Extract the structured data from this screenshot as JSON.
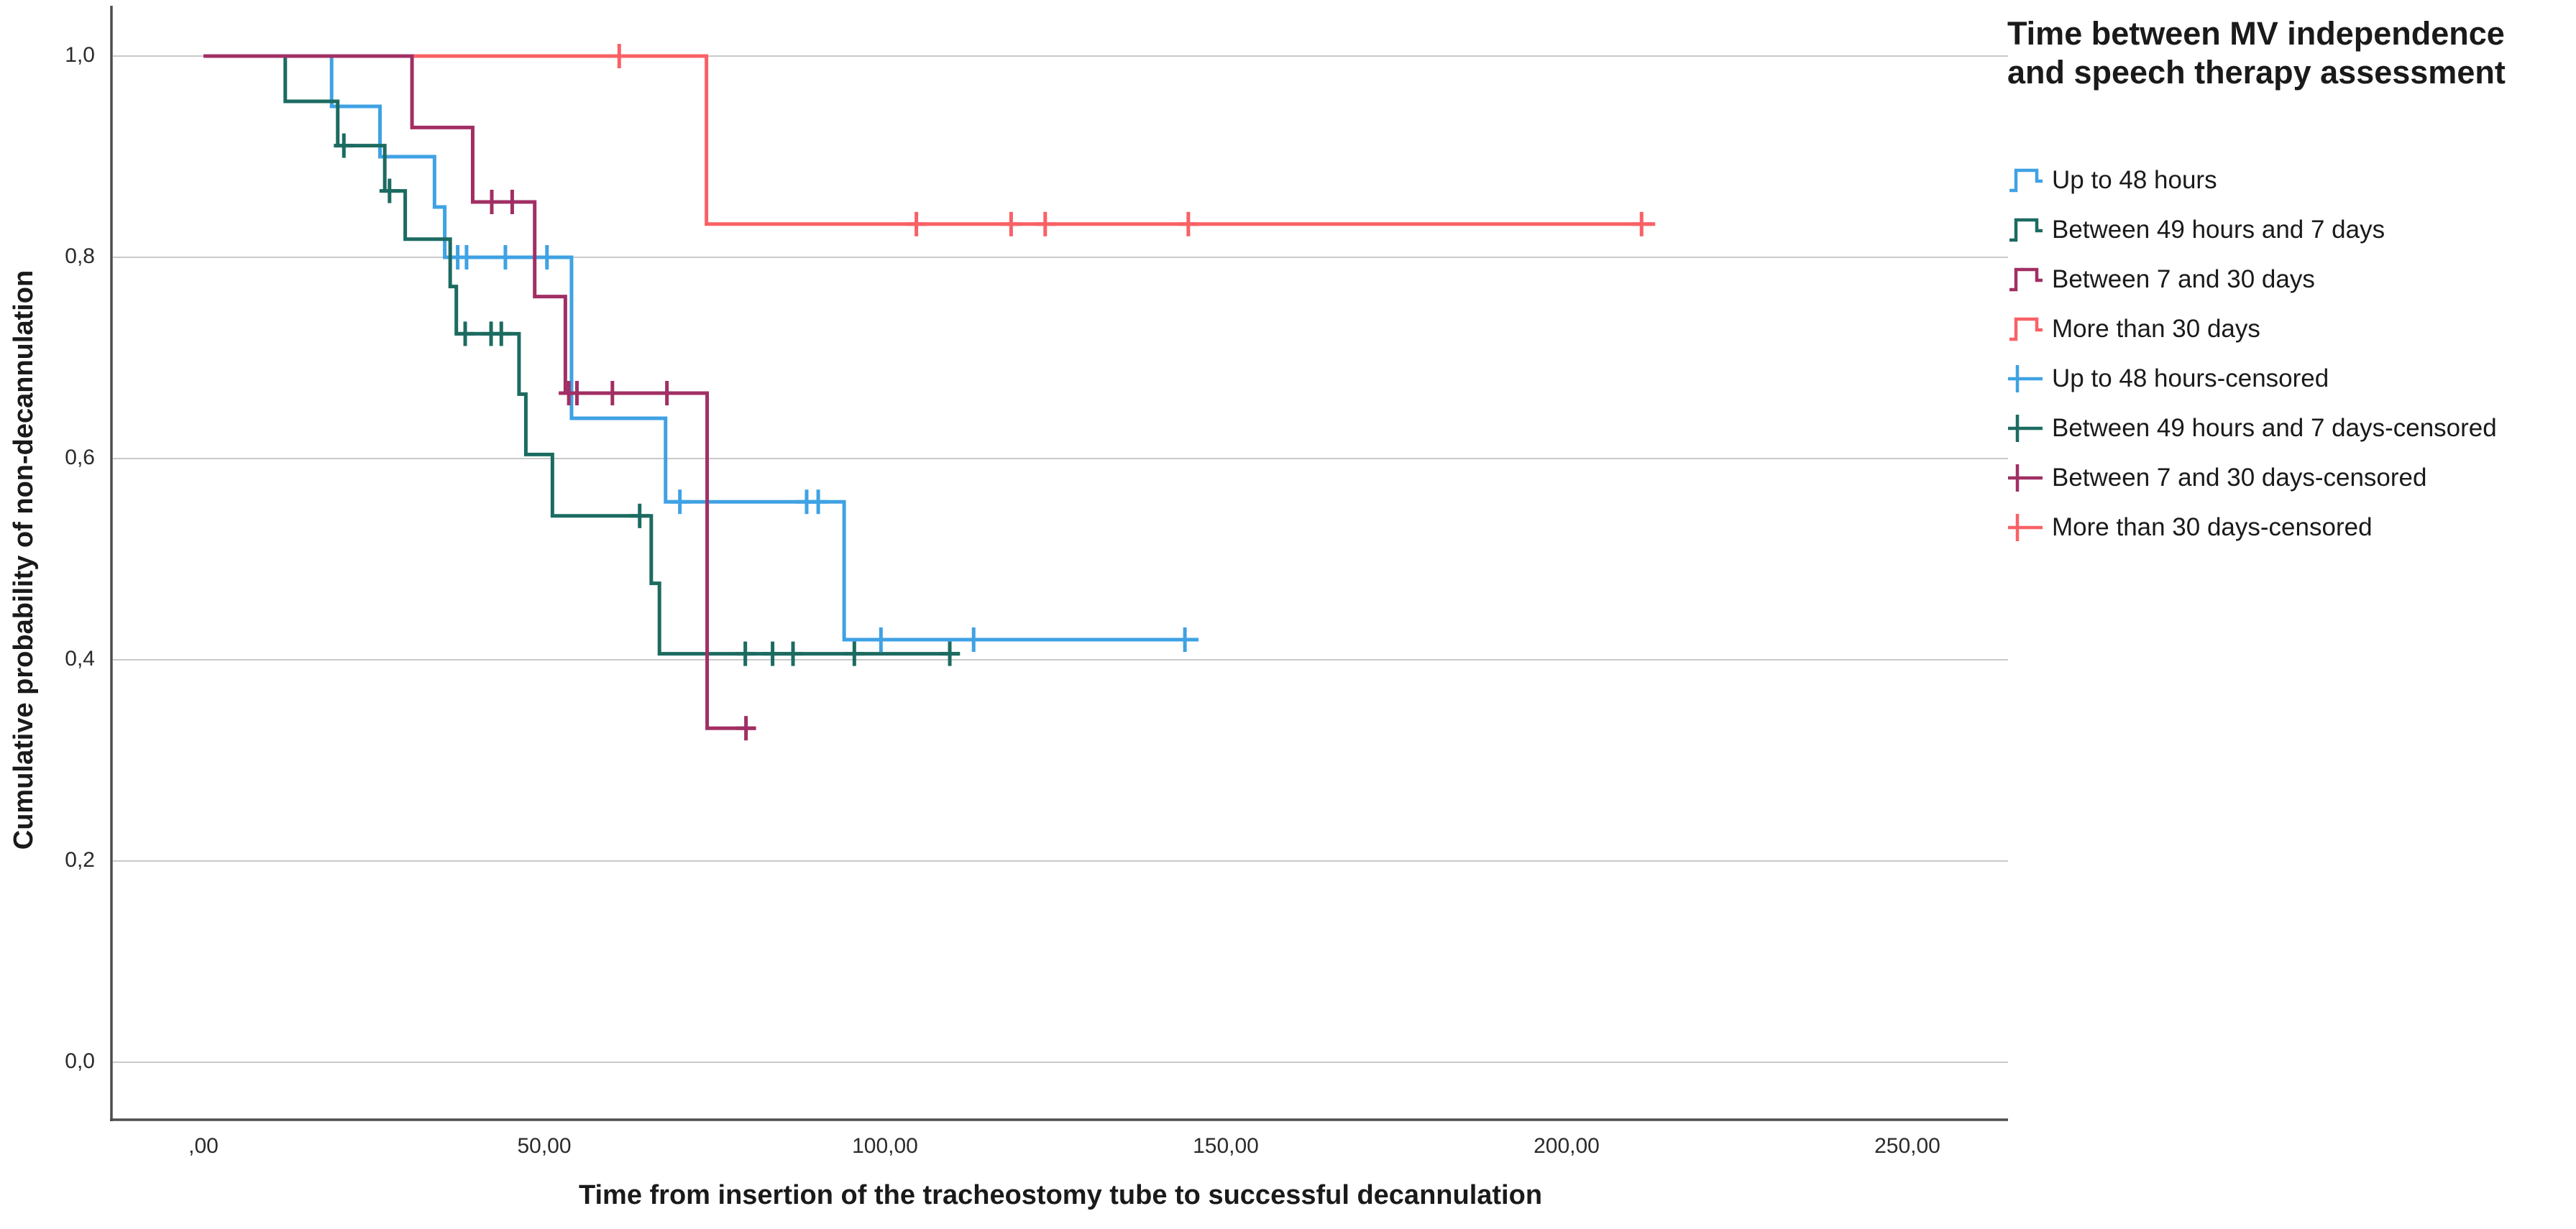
{
  "chart_data": {
    "type": "line",
    "subtype": "kaplan-meier-step-survival",
    "title": "",
    "xlabel": "Time from insertion of the tracheostomy tube to successful decannulation",
    "ylabel": "Cumulative probability of non-decannulation",
    "legend_title": "Time between MV independence and speech therapy assessment",
    "legend_position": "top-right",
    "grid": "horizontal",
    "x_axis": {
      "range": [
        0,
        265
      ],
      "ticks": [
        0,
        50,
        100,
        150,
        200,
        250
      ],
      "tick_labels": [
        ",00",
        "50,00",
        "100,00",
        "150,00",
        "200,00",
        "250,00"
      ]
    },
    "y_axis": {
      "range": [
        0,
        1
      ],
      "ticks": [
        0,
        0.2,
        0.4,
        0.6,
        0.8,
        1.0
      ],
      "tick_labels": [
        "0,0",
        "0,2",
        "0,4",
        "0,6",
        "0,8",
        "1,0"
      ]
    },
    "series": [
      {
        "name": "Up to 48 hours",
        "color": "#3FA2E4",
        "steps": [
          [
            0,
            1.0
          ],
          [
            18.8,
            0.95
          ],
          [
            25.9,
            0.9
          ],
          [
            33.9,
            0.85
          ],
          [
            35.4,
            0.8
          ],
          [
            54,
            0.64
          ],
          [
            67.8,
            0.557
          ],
          [
            94,
            0.42
          ]
        ],
        "end_time": 146,
        "censored": [
          [
            37.3,
            0.8
          ],
          [
            38.6,
            0.8
          ],
          [
            44.3,
            0.8
          ],
          [
            50.4,
            0.8
          ],
          [
            69.9,
            0.557
          ],
          [
            88.5,
            0.557
          ],
          [
            90.2,
            0.557
          ],
          [
            99.4,
            0.42
          ],
          [
            113,
            0.42
          ],
          [
            144,
            0.42
          ]
        ]
      },
      {
        "name": "Between 49 hours and 7 days",
        "color": "#1C6B61",
        "steps": [
          [
            0,
            1.0
          ],
          [
            12,
            0.955
          ],
          [
            19.7,
            0.911
          ],
          [
            26.6,
            0.866
          ],
          [
            29.6,
            0.818
          ],
          [
            36.2,
            0.771
          ],
          [
            37.1,
            0.724
          ],
          [
            46.3,
            0.664
          ],
          [
            47.3,
            0.604
          ],
          [
            51.2,
            0.543
          ],
          [
            65.7,
            0.476
          ],
          [
            66.9,
            0.406
          ]
        ],
        "end_time": 111,
        "censored": [
          [
            20.6,
            0.911
          ],
          [
            27.3,
            0.866
          ],
          [
            38.4,
            0.724
          ],
          [
            42.2,
            0.724
          ],
          [
            43.7,
            0.724
          ],
          [
            64,
            0.543
          ],
          [
            79.5,
            0.406
          ],
          [
            83.5,
            0.406
          ],
          [
            86.5,
            0.406
          ],
          [
            95.5,
            0.406
          ],
          [
            109.5,
            0.406
          ]
        ]
      },
      {
        "name": "Between 7 and 30 days",
        "color": "#A12F64",
        "steps": [
          [
            0,
            1.0
          ],
          [
            30.6,
            0.929
          ],
          [
            39.5,
            0.855
          ],
          [
            48.6,
            0.761
          ],
          [
            53.1,
            0.665
          ],
          [
            73.9,
            0.332
          ]
        ],
        "end_time": 81,
        "censored": [
          [
            42.3,
            0.855
          ],
          [
            45.3,
            0.855
          ],
          [
            53.6,
            0.665
          ],
          [
            54.8,
            0.665
          ],
          [
            60,
            0.665
          ],
          [
            68,
            0.665
          ],
          [
            79.6,
            0.332
          ]
        ]
      },
      {
        "name": "More than 30 days",
        "color": "#F96166",
        "steps": [
          [
            0,
            1.0
          ],
          [
            73.8,
            0.833
          ]
        ],
        "end_time": 213,
        "censored": [
          [
            61,
            1.0
          ],
          [
            104.6,
            0.833
          ],
          [
            118.5,
            0.833
          ],
          [
            123.5,
            0.833
          ],
          [
            144.5,
            0.833
          ],
          [
            211,
            0.833
          ]
        ]
      }
    ],
    "legend_items": [
      {
        "label": "Up to 48 hours",
        "color": "#3FA2E4",
        "glyph": "step-line"
      },
      {
        "label": "Between 49 hours and 7 days",
        "color": "#1C6B61",
        "glyph": "step-line"
      },
      {
        "label": "Between 7 and 30 days",
        "color": "#A12F64",
        "glyph": "step-line"
      },
      {
        "label": "More than 30 days",
        "color": "#F96166",
        "glyph": "step-line"
      },
      {
        "label": "Up to 48 hours-censored",
        "color": "#3FA2E4",
        "glyph": "censor-cross"
      },
      {
        "label": "Between 49 hours and 7 days-censored",
        "color": "#1C6B61",
        "glyph": "censor-cross"
      },
      {
        "label": "Between 7 and 30 days-censored",
        "color": "#A12F64",
        "glyph": "censor-cross"
      },
      {
        "label": "More than 30 days-censored",
        "color": "#F96166",
        "glyph": "censor-cross"
      }
    ],
    "colors": {
      "axis": "#4D4D4D",
      "gridline": "#C9C9C9",
      "text": "#1A1A1A"
    }
  }
}
